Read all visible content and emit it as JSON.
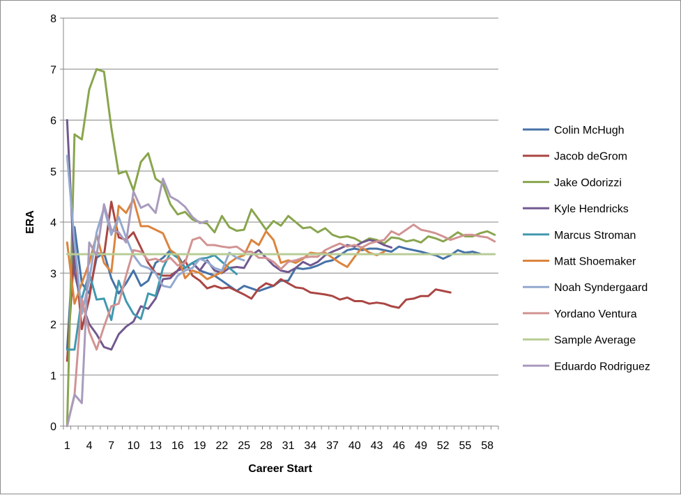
{
  "chart_data": {
    "type": "line",
    "title": "",
    "xlabel": "Career Start",
    "ylabel": "ERA",
    "xlim": [
      1,
      59
    ],
    "ylim": [
      0,
      8
    ],
    "x_ticks": [
      1,
      4,
      7,
      10,
      13,
      16,
      19,
      22,
      25,
      28,
      31,
      34,
      37,
      40,
      43,
      46,
      49,
      52,
      55,
      58
    ],
    "y_ticks": [
      0,
      1,
      2,
      3,
      4,
      5,
      6,
      7,
      8
    ],
    "grid": "horizontal",
    "legend": "right",
    "series": [
      {
        "name": "Colin McHugh",
        "color": "#4572A7",
        "values": [
          1.5,
          3.9,
          2.8,
          2.6,
          3.3,
          3.4,
          2.9,
          2.6,
          2.8,
          3.05,
          2.75,
          2.85,
          3.2,
          3.3,
          3.45,
          3.35,
          3.1,
          3.2,
          3.05,
          3.0,
          2.95,
          2.85,
          2.75,
          2.65,
          2.75,
          2.7,
          2.65,
          2.7,
          2.75,
          2.85,
          2.85,
          3.1,
          3.08,
          3.1,
          3.15,
          3.22,
          3.25,
          3.35,
          3.45,
          3.48,
          3.45,
          3.48,
          3.48,
          3.45,
          3.42,
          3.52,
          3.48,
          3.45,
          3.42,
          3.38,
          3.35,
          3.28,
          3.35,
          3.45,
          3.4,
          3.42,
          3.38
        ]
      },
      {
        "name": "Jacob deGrom",
        "color": "#AA4643",
        "values": [
          1.28,
          3.5,
          1.9,
          2.5,
          3.4,
          3.35,
          4.4,
          3.7,
          3.65,
          3.8,
          3.5,
          3.2,
          3.0,
          2.95,
          2.95,
          3.05,
          3.25,
          2.95,
          2.85,
          2.7,
          2.75,
          2.7,
          2.72,
          2.65,
          2.58,
          2.5,
          2.7,
          2.8,
          2.75,
          2.88,
          2.8,
          2.72,
          2.7,
          2.62,
          2.6,
          2.58,
          2.55,
          2.48,
          2.52,
          2.45,
          2.45,
          2.4,
          2.42,
          2.4,
          2.35,
          2.32,
          2.48,
          2.5,
          2.55,
          2.55,
          2.68,
          2.65,
          2.62
        ]
      },
      {
        "name": "Jake Odorizzi",
        "color": "#89A54E",
        "values": [
          0,
          5.72,
          5.62,
          6.6,
          7.0,
          6.95,
          5.85,
          4.95,
          5.0,
          4.62,
          5.18,
          5.35,
          4.85,
          4.75,
          4.35,
          4.15,
          4.2,
          4.05,
          4.0,
          3.97,
          3.8,
          4.12,
          3.9,
          3.83,
          3.85,
          4.25,
          4.05,
          3.85,
          4.02,
          3.93,
          4.12,
          4.0,
          3.88,
          3.9,
          3.8,
          3.88,
          3.75,
          3.7,
          3.72,
          3.68,
          3.6,
          3.68,
          3.65,
          3.58,
          3.7,
          3.68,
          3.62,
          3.65,
          3.6,
          3.72,
          3.68,
          3.62,
          3.7,
          3.8,
          3.72,
          3.72,
          3.78,
          3.82,
          3.75
        ]
      },
      {
        "name": "Kyle Hendricks",
        "color": "#71588F",
        "values": [
          6.0,
          3.0,
          2.4,
          2.0,
          1.8,
          1.55,
          1.5,
          1.8,
          1.95,
          2.05,
          2.35,
          2.3,
          2.5,
          2.88,
          2.9,
          3.05,
          3.1,
          3.2,
          3.05,
          3.25,
          3.05,
          3.0,
          3.1,
          3.12,
          3.1,
          3.35,
          3.45,
          3.3,
          3.15,
          3.05,
          3.02,
          3.1,
          3.22,
          3.15,
          3.22,
          3.35,
          3.42,
          3.48,
          3.55,
          3.52,
          3.6,
          3.65,
          3.62,
          3.55,
          3.5
        ]
      },
      {
        "name": "Marcus Stroman",
        "color": "#4198AF",
        "values": [
          1.5,
          1.5,
          2.5,
          3.0,
          2.48,
          2.5,
          2.08,
          2.85,
          2.45,
          2.2,
          2.1,
          2.6,
          2.55,
          3.1,
          3.4,
          3.3,
          3.1,
          3.2,
          3.28,
          3.3,
          3.35,
          3.22,
          3.1,
          2.98
        ]
      },
      {
        "name": "Matt Shoemaker",
        "color": "#DB843D",
        "values": [
          3.6,
          2.4,
          2.8,
          3.2,
          3.75,
          3.2,
          3.02,
          4.32,
          4.18,
          4.45,
          3.92,
          3.92,
          3.85,
          3.78,
          3.45,
          3.35,
          2.9,
          3.05,
          3.0,
          2.88,
          2.95,
          3.02,
          3.2,
          3.3,
          3.35,
          3.65,
          3.55,
          3.82,
          3.65,
          3.2,
          3.25,
          3.2,
          3.28,
          3.4,
          3.38,
          3.4,
          3.3,
          3.2,
          3.12,
          3.32,
          3.5,
          3.4,
          3.35,
          3.42
        ]
      },
      {
        "name": "Noah Syndergaard",
        "color": "#93A9CF",
        "values": [
          5.3,
          3.6,
          2.2,
          2.85,
          3.8,
          4.28,
          3.75,
          4.1,
          3.7,
          3.35,
          3.15,
          3.1,
          3.0,
          2.75,
          2.72,
          2.95,
          3.05,
          3.1,
          3.28,
          3.22,
          3.1,
          3.05,
          3.4,
          3.3,
          3.25
        ]
      },
      {
        "name": "Yordano Ventura",
        "color": "#D19392",
        "values": [
          0,
          0.6,
          2.5,
          1.85,
          1.5,
          1.95,
          2.35,
          2.4,
          2.95,
          3.45,
          3.42,
          3.25,
          3.28,
          3.22,
          3.3,
          3.15,
          3.2,
          3.65,
          3.7,
          3.55,
          3.55,
          3.52,
          3.5,
          3.52,
          3.42,
          3.42,
          3.3,
          3.3,
          3.22,
          3.08,
          3.22,
          3.25,
          3.3,
          3.32,
          3.32,
          3.45,
          3.52,
          3.58,
          3.52,
          3.55,
          3.5,
          3.58,
          3.62,
          3.65,
          3.82,
          3.75,
          3.85,
          3.95,
          3.85,
          3.82,
          3.78,
          3.72,
          3.65,
          3.7,
          3.75,
          3.75,
          3.72,
          3.7,
          3.62
        ]
      },
      {
        "name": "Sample Average",
        "color": "#B9CD96",
        "values": [
          3.37,
          3.37,
          3.37,
          3.37,
          3.37,
          3.37,
          3.37,
          3.37,
          3.37,
          3.37,
          3.37,
          3.37,
          3.37,
          3.37,
          3.37,
          3.37,
          3.37,
          3.37,
          3.37,
          3.37,
          3.37,
          3.37,
          3.37,
          3.37,
          3.37,
          3.37,
          3.37,
          3.37,
          3.37,
          3.37,
          3.37,
          3.37,
          3.37,
          3.37,
          3.37,
          3.37,
          3.37,
          3.37,
          3.37,
          3.37,
          3.37,
          3.37,
          3.37,
          3.37,
          3.37,
          3.37,
          3.37,
          3.37,
          3.37,
          3.37,
          3.37,
          3.37,
          3.37,
          3.37,
          3.37,
          3.37,
          3.37,
          3.37,
          3.37
        ]
      },
      {
        "name": "Eduardo Rodriguez",
        "color": "#A99BBD",
        "values": [
          0,
          0.62,
          0.45,
          3.6,
          3.35,
          4.35,
          3.85,
          3.8,
          3.6,
          4.6,
          4.28,
          4.35,
          4.18,
          4.85,
          4.5,
          4.42,
          4.3,
          4.1,
          3.98,
          4.02
        ]
      }
    ]
  }
}
